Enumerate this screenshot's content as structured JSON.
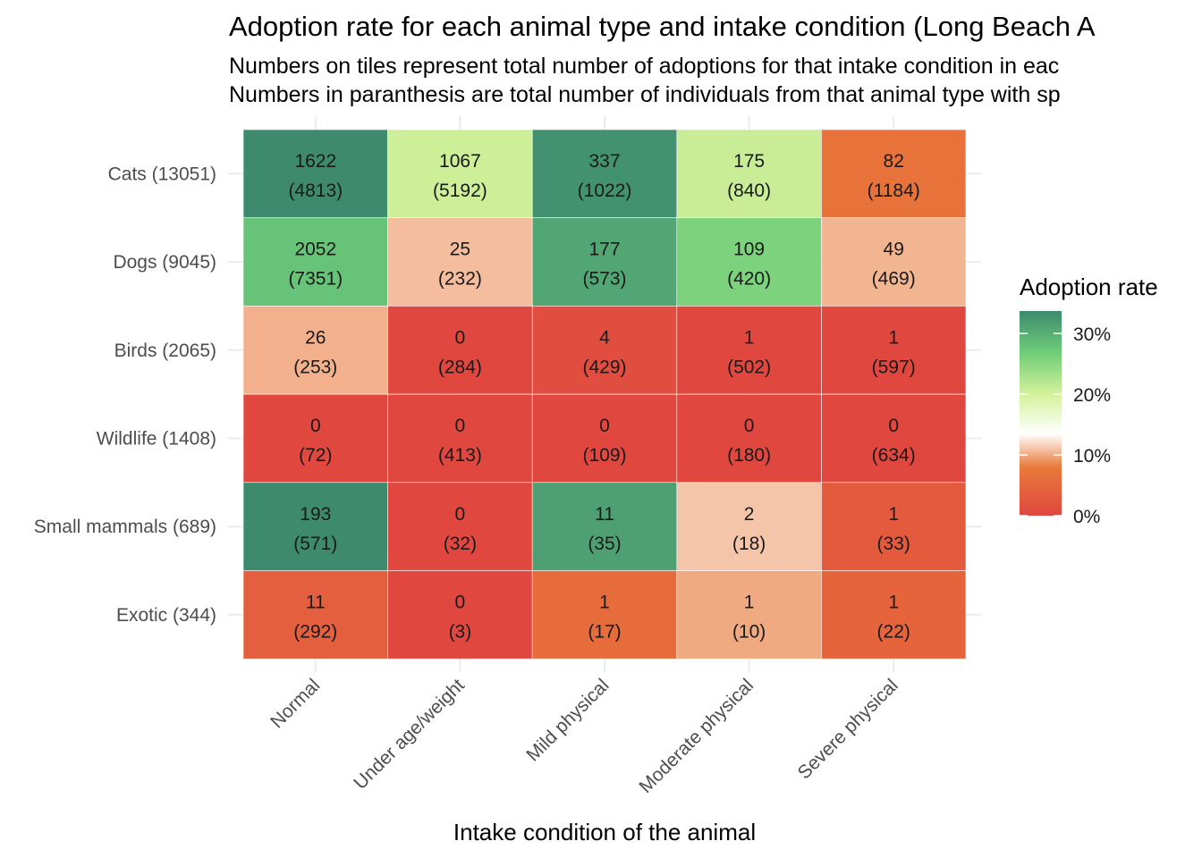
{
  "chart_data": {
    "type": "heatmap",
    "title": "Adoption rate for each animal type and intake condition (Long Beach A",
    "subtitle_lines": [
      "Numbers on tiles represent total number of adoptions for that intake condition in eac",
      "Numbers in paranthesis are total number of individuals from that animal type with sp"
    ],
    "xlabel": "Intake condition of the animal",
    "ylabel": "",
    "x_categories": [
      "Normal",
      "Under age/weight",
      "Mild physical",
      "Moderate physical",
      "Severe physical"
    ],
    "y_categories": [
      "Cats (13051)",
      "Dogs (9045)",
      "Birds (2065)",
      "Wildlife (1408)",
      "Small mammals (689)",
      "Exotic (344)"
    ],
    "adoptions": [
      [
        1622,
        1067,
        337,
        175,
        82
      ],
      [
        2052,
        25,
        177,
        109,
        49
      ],
      [
        26,
        0,
        4,
        1,
        1
      ],
      [
        0,
        0,
        0,
        0,
        0
      ],
      [
        193,
        0,
        11,
        2,
        1
      ],
      [
        11,
        0,
        1,
        1,
        1
      ]
    ],
    "totals": [
      [
        4813,
        5192,
        1022,
        840,
        1184
      ],
      [
        7351,
        232,
        573,
        420,
        469
      ],
      [
        253,
        284,
        429,
        502,
        597
      ],
      [
        72,
        413,
        109,
        180,
        634
      ],
      [
        571,
        32,
        35,
        18,
        33
      ],
      [
        292,
        3,
        17,
        10,
        22
      ]
    ],
    "legend": {
      "title": "Adoption rate",
      "ticks": [
        "30%",
        "20%",
        "10%",
        "0%"
      ],
      "tick_values": [
        0.3,
        0.2,
        0.1,
        0.0
      ],
      "range": [
        0.0,
        0.337
      ]
    },
    "colors": {
      "low": "#e0473f",
      "mid_low": "#e87a3a",
      "mid": "#ffffff",
      "mid_high": "#d4f29a",
      "high_mid": "#6ecc78",
      "high": "#3d8a6f"
    },
    "grid": true
  }
}
